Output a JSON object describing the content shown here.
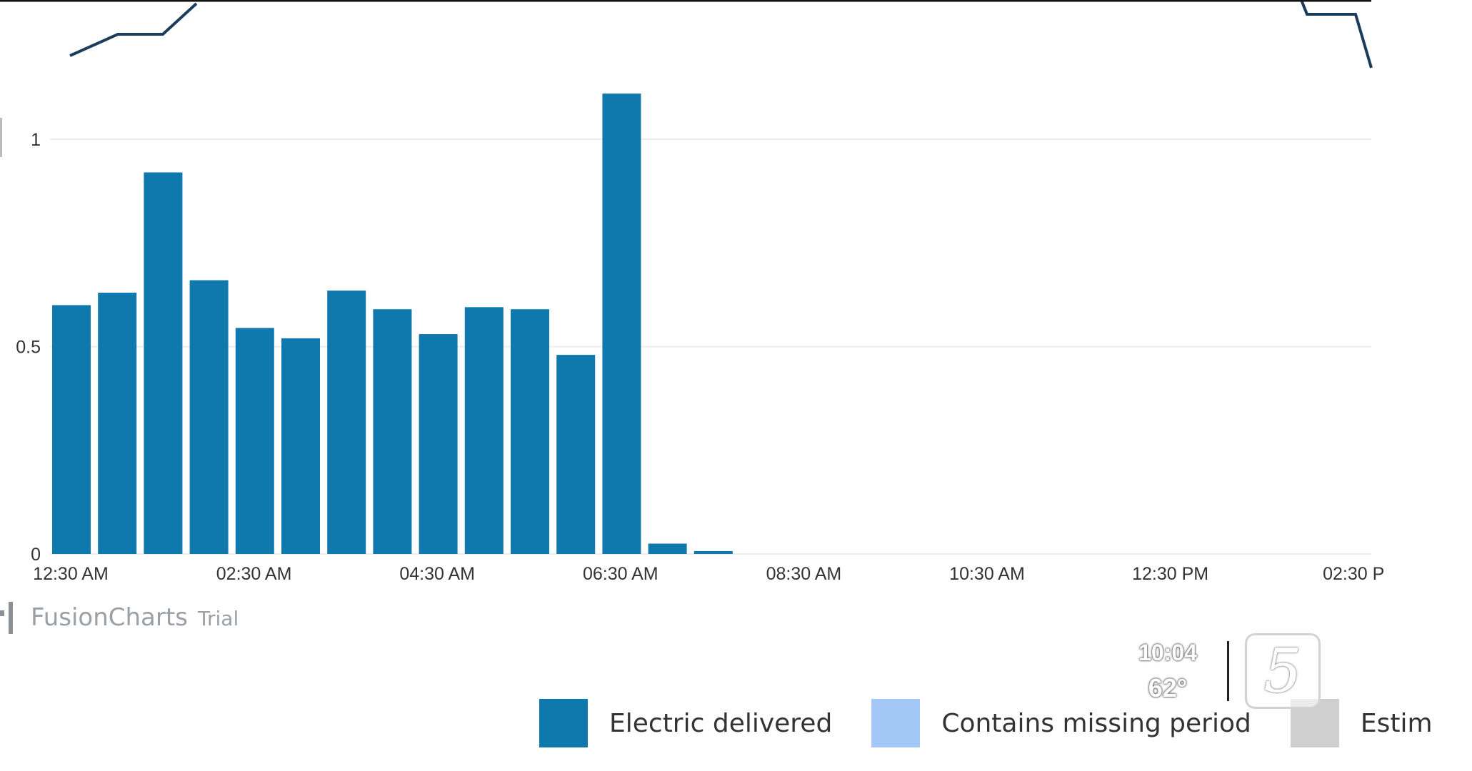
{
  "chart_data": {
    "type": "bar",
    "yticks": [
      0,
      0.5,
      1
    ],
    "ylim": [
      0,
      1.15
    ],
    "grid": true,
    "x_tick_labels": [
      "12:30 AM",
      "02:30 AM",
      "04:30 AM",
      "06:30 AM",
      "08:30 AM",
      "10:30 AM",
      "12:30 PM",
      "02:30 P"
    ],
    "series": [
      {
        "name": "Electric delivered",
        "color": "#0f78ad",
        "values": [
          0.6,
          0.63,
          0.92,
          0.66,
          0.545,
          0.52,
          0.635,
          0.59,
          0.53,
          0.595,
          0.59,
          0.48,
          1.11,
          0.025,
          0.007
        ]
      }
    ],
    "legend": {
      "position": "bottom",
      "items": [
        {
          "label": "Electric delivered",
          "color": "#0f78ad"
        },
        {
          "label": "Contains missing period",
          "color": "#a3c8f7"
        },
        {
          "label": "Estim",
          "color": "#cfcfcf"
        }
      ]
    }
  },
  "watermark": {
    "brand": "FusionCharts",
    "suffix": "Trial"
  },
  "overlay": {
    "time": "10:04",
    "temperature": "62°",
    "channel": "5"
  }
}
